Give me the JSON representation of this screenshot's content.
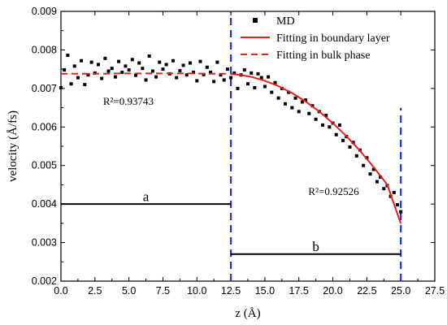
{
  "chart_data": {
    "type": "scatter",
    "xlabel": "z (Å)",
    "ylabel": "velocity (Å/fs)",
    "xlim": [
      0.0,
      27.5
    ],
    "ylim": [
      0.002,
      0.009
    ],
    "x_ticks": [
      "0.0",
      "2.5",
      "5.0",
      "7.5",
      "10.0",
      "12.5",
      "15.0",
      "17.5",
      "20.0",
      "22.5",
      "25.0",
      "27.5"
    ],
    "y_ticks": [
      "0.002",
      "0.003",
      "0.004",
      "0.005",
      "0.006",
      "0.007",
      "0.008",
      "0.009"
    ],
    "grid": false,
    "legend_position": "top-right",
    "legend": [
      {
        "key": "md",
        "label": "MD",
        "style": "square-marker",
        "color": "#000000"
      },
      {
        "key": "boundary",
        "label": "Fitting in boundary layer",
        "style": "solid",
        "color": "#e8201a"
      },
      {
        "key": "bulk",
        "label": "Fitting in bulk phase",
        "style": "dashed",
        "color": "#e8201a"
      }
    ],
    "series": [
      {
        "name": "MD",
        "x": [
          0.0,
          0.25,
          0.5,
          0.75,
          1.0,
          1.25,
          1.5,
          1.75,
          2.0,
          2.25,
          2.5,
          2.75,
          3.0,
          3.25,
          3.5,
          3.75,
          4.0,
          4.25,
          4.5,
          4.75,
          5.0,
          5.25,
          5.5,
          5.75,
          6.0,
          6.25,
          6.5,
          6.75,
          7.0,
          7.25,
          7.5,
          7.75,
          8.0,
          8.25,
          8.5,
          8.75,
          9.0,
          9.25,
          9.5,
          9.75,
          10.0,
          10.25,
          10.5,
          10.75,
          11.0,
          11.25,
          11.5,
          11.75,
          12.0,
          12.25,
          12.5,
          12.75,
          13.0,
          13.25,
          13.5,
          13.75,
          14.0,
          14.25,
          14.5,
          14.75,
          15.0,
          15.25,
          15.5,
          15.75,
          16.0,
          16.25,
          16.5,
          16.75,
          17.0,
          17.25,
          17.5,
          17.75,
          18.0,
          18.25,
          18.5,
          18.75,
          19.0,
          19.25,
          19.5,
          19.75,
          20.0,
          20.25,
          20.5,
          20.75,
          21.0,
          21.25,
          21.5,
          21.75,
          22.0,
          22.25,
          22.5,
          22.75,
          23.0,
          23.25,
          23.5,
          23.75,
          24.0,
          24.25,
          24.5,
          24.75,
          25.0
        ],
        "y": [
          0.00702,
          0.00748,
          0.00786,
          0.00712,
          0.00758,
          0.00728,
          0.00772,
          0.0071,
          0.00735,
          0.00768,
          0.0074,
          0.00762,
          0.00726,
          0.00778,
          0.00745,
          0.00752,
          0.0073,
          0.0077,
          0.00742,
          0.00758,
          0.00748,
          0.00775,
          0.00734,
          0.00766,
          0.00752,
          0.00722,
          0.00784,
          0.00745,
          0.0073,
          0.00768,
          0.0075,
          0.00762,
          0.00738,
          0.00772,
          0.00728,
          0.00746,
          0.0076,
          0.00735,
          0.00766,
          0.00742,
          0.0072,
          0.0077,
          0.00736,
          0.00755,
          0.00742,
          0.00718,
          0.00768,
          0.00735,
          0.00722,
          0.0075,
          0.00728,
          0.0074,
          0.007,
          0.00735,
          0.00748,
          0.00712,
          0.0074,
          0.00702,
          0.00738,
          0.00728,
          0.00705,
          0.0073,
          0.0069,
          0.00715,
          0.00675,
          0.007,
          0.0066,
          0.0069,
          0.0065,
          0.00675,
          0.0064,
          0.00665,
          0.0067,
          0.00635,
          0.00655,
          0.0062,
          0.0064,
          0.00605,
          0.0063,
          0.006,
          0.0061,
          0.0058,
          0.00605,
          0.00565,
          0.00575,
          0.00548,
          0.0056,
          0.00525,
          0.0054,
          0.005,
          0.0052,
          0.00478,
          0.0049,
          0.00458,
          0.0047,
          0.0044,
          0.00448,
          0.0042,
          0.0043,
          0.00398,
          0.0038
        ]
      },
      {
        "name": "Fitting in bulk phase",
        "x": [
          0.0,
          1.0,
          2.0,
          3.0,
          4.0,
          5.0,
          6.0,
          7.0,
          8.0,
          9.0,
          10.0,
          11.0,
          12.0,
          12.5
        ],
        "y": [
          0.00738,
          0.00738,
          0.00738,
          0.00738,
          0.00739,
          0.00739,
          0.00739,
          0.00739,
          0.00739,
          0.00739,
          0.00739,
          0.00738,
          0.00738,
          0.00738
        ]
      },
      {
        "name": "Fitting in boundary layer",
        "x": [
          12.5,
          13.0,
          14.0,
          15.0,
          16.0,
          17.0,
          18.0,
          19.0,
          20.0,
          21.0,
          22.0,
          23.0,
          24.0,
          25.0
        ],
        "y": [
          0.00737,
          0.00736,
          0.0073,
          0.0072,
          0.00706,
          0.00688,
          0.00666,
          0.0064,
          0.0061,
          0.00576,
          0.00538,
          0.00496,
          0.0045,
          0.00349
        ]
      }
    ],
    "annotations": [
      {
        "key": "r2_bulk",
        "text": "R²=0.93743",
        "x": 3.1,
        "y": 0.00658
      },
      {
        "key": "r2_boundary",
        "text": "R²=0.92526",
        "x": 18.2,
        "y": 0.00423
      }
    ],
    "vertical_lines": [
      {
        "x": 12.5,
        "y0": 0.002,
        "y1": 0.009,
        "color": "#1f2ee0",
        "style": "dashed"
      },
      {
        "x": 25.0,
        "y0": 0.002,
        "y1": 0.0065,
        "color": "#1f2ee0",
        "style": "dashed"
      }
    ],
    "segments": [
      {
        "label": "a",
        "x0": 0.0,
        "x1": 12.5,
        "y": 0.004,
        "label_x": 6.25,
        "label_y": 0.00408
      },
      {
        "label": "b",
        "x0": 12.5,
        "x1": 25.0,
        "y": 0.0027,
        "label_x": 18.75,
        "label_y": 0.00278
      }
    ]
  }
}
